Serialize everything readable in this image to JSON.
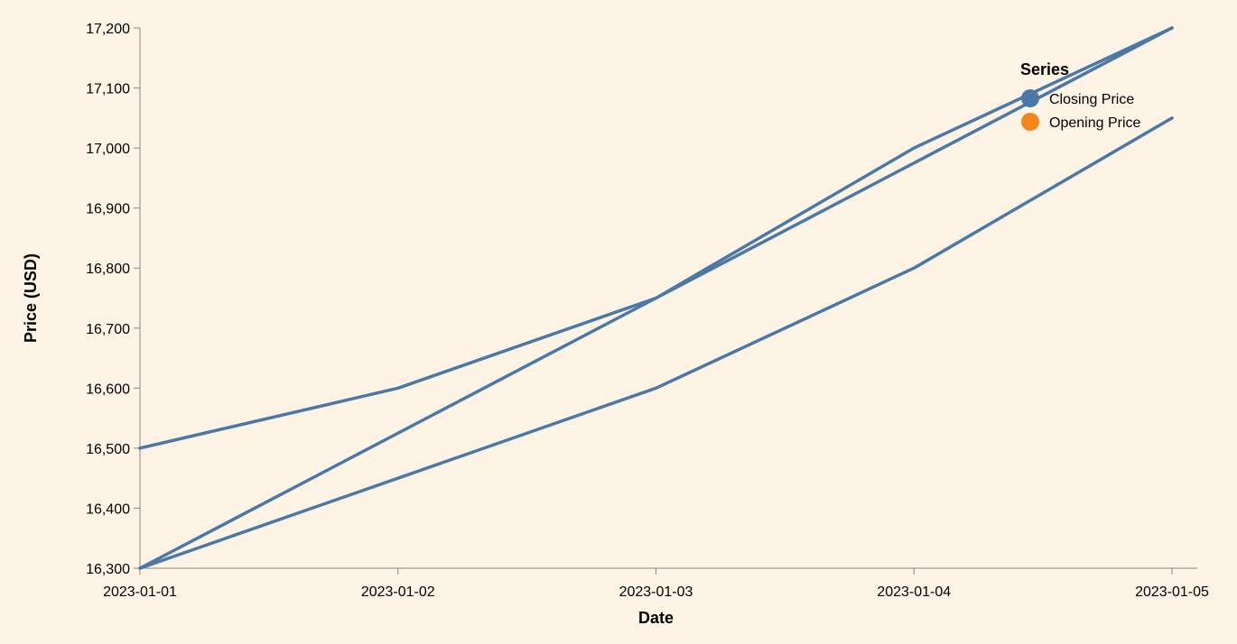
{
  "chart_data": {
    "type": "line",
    "xlabel": "Date",
    "ylabel": "Price (USD)",
    "x": [
      "2023-01-01",
      "2023-01-02",
      "2023-01-03",
      "2023-01-04",
      "2023-01-05"
    ],
    "ylim": [
      16300,
      17200
    ],
    "y_ticks": [
      16300,
      16400,
      16500,
      16600,
      16700,
      16800,
      16900,
      17000,
      17100,
      17200
    ],
    "y_tick_labels": [
      "16,300",
      "16,400",
      "16,500",
      "16,600",
      "16,700",
      "16,800",
      "16,900",
      "17,000",
      "17,100",
      "17,200"
    ],
    "grid": false,
    "series": [
      {
        "values": [
          16500,
          16600,
          16750,
          17000,
          17200
        ],
        "color": "#4c78a8"
      },
      {
        "values": [
          16300,
          16525,
          16750,
          16975,
          17200
        ],
        "color": "#4c78a8"
      },
      {
        "values": [
          16300,
          16450,
          16600,
          16800,
          17050
        ],
        "color": "#4c78a8"
      }
    ],
    "legend": {
      "title": "Series",
      "placement": "top-right",
      "entries": [
        {
          "label": "Closing Price",
          "color": "#4c78a8"
        },
        {
          "label": "Opening Price",
          "color": "#f58518"
        }
      ]
    },
    "background": "#fdf4e6",
    "axis_color": "#888888"
  }
}
